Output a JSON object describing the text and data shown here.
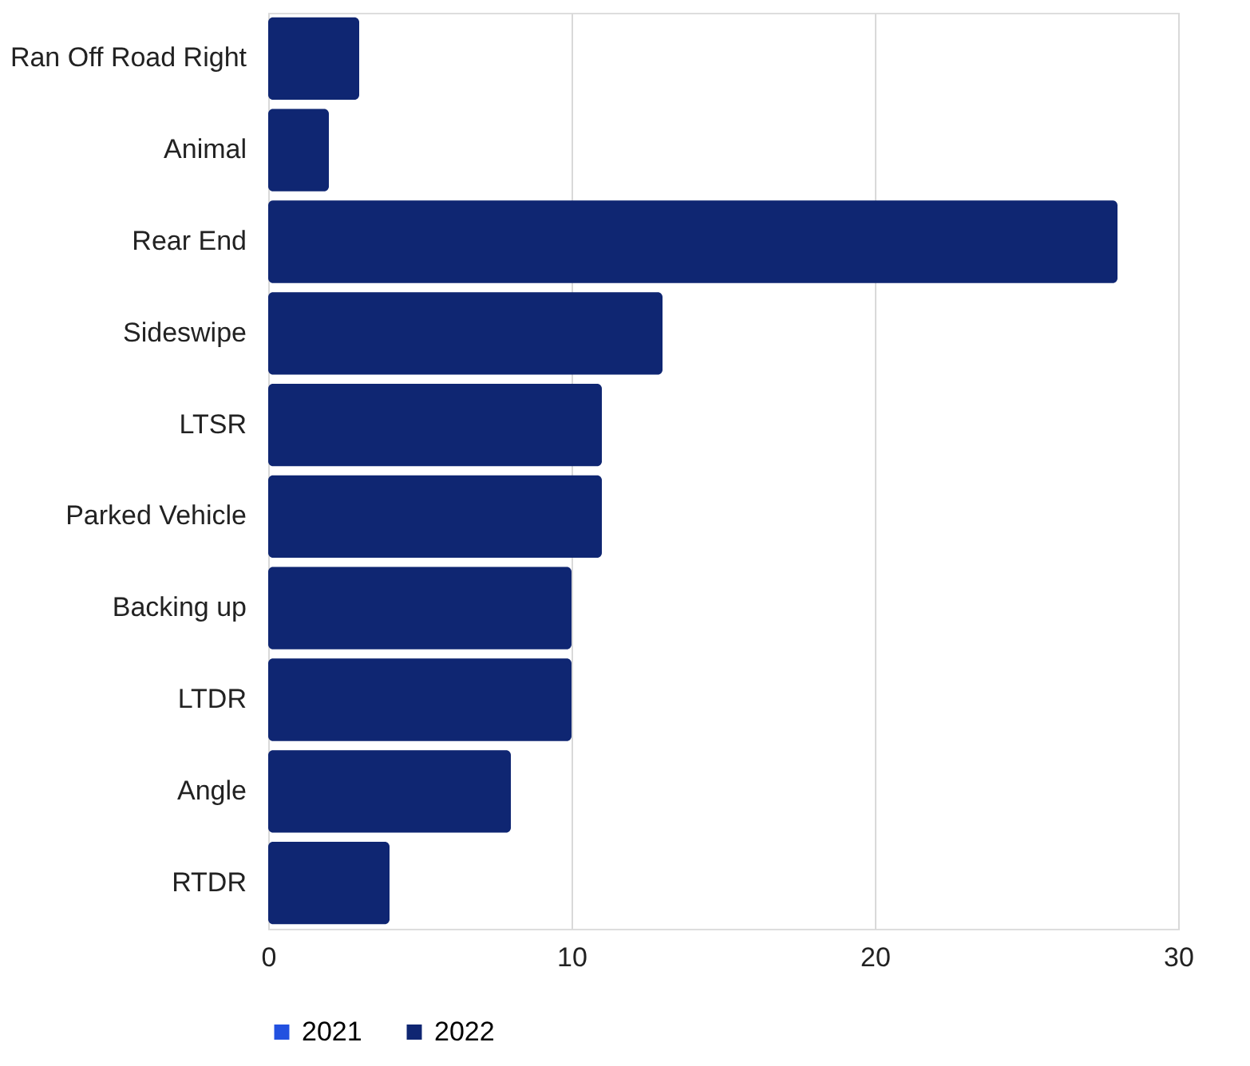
{
  "chart_data": {
    "type": "bar",
    "orientation": "horizontal",
    "stacked": true,
    "categories": [
      "Ran Off Road Right",
      "Animal",
      "Rear End",
      "Sideswipe",
      "LTSR",
      "Parked Vehicle",
      "Backing up",
      "LTDR",
      "Angle",
      "RTDR"
    ],
    "series": [
      {
        "name": "2021",
        "color": "#2251e0",
        "values": [
          null,
          null,
          null,
          null,
          null,
          null,
          null,
          null,
          null,
          null
        ]
      },
      {
        "name": "2022",
        "color": "#0f2672",
        "values": [
          3,
          2,
          28,
          13,
          11,
          11,
          10,
          10,
          8,
          4
        ]
      }
    ],
    "xlim": [
      0,
      30
    ],
    "xticks": [
      0,
      10,
      20,
      30
    ],
    "grid": "x",
    "legend": "bottom left"
  }
}
